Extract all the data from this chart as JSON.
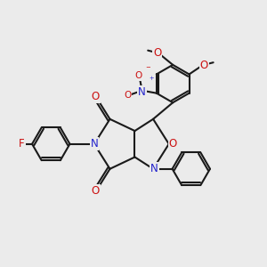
{
  "bg_color": "#ebebeb",
  "bond_color": "#1a1a1a",
  "N_color": "#2222cc",
  "O_color": "#cc1111",
  "F_color": "#cc1111",
  "lw": 1.5,
  "fs": 8.5,
  "xlim": [
    0,
    10
  ],
  "ylim": [
    0,
    10
  ]
}
